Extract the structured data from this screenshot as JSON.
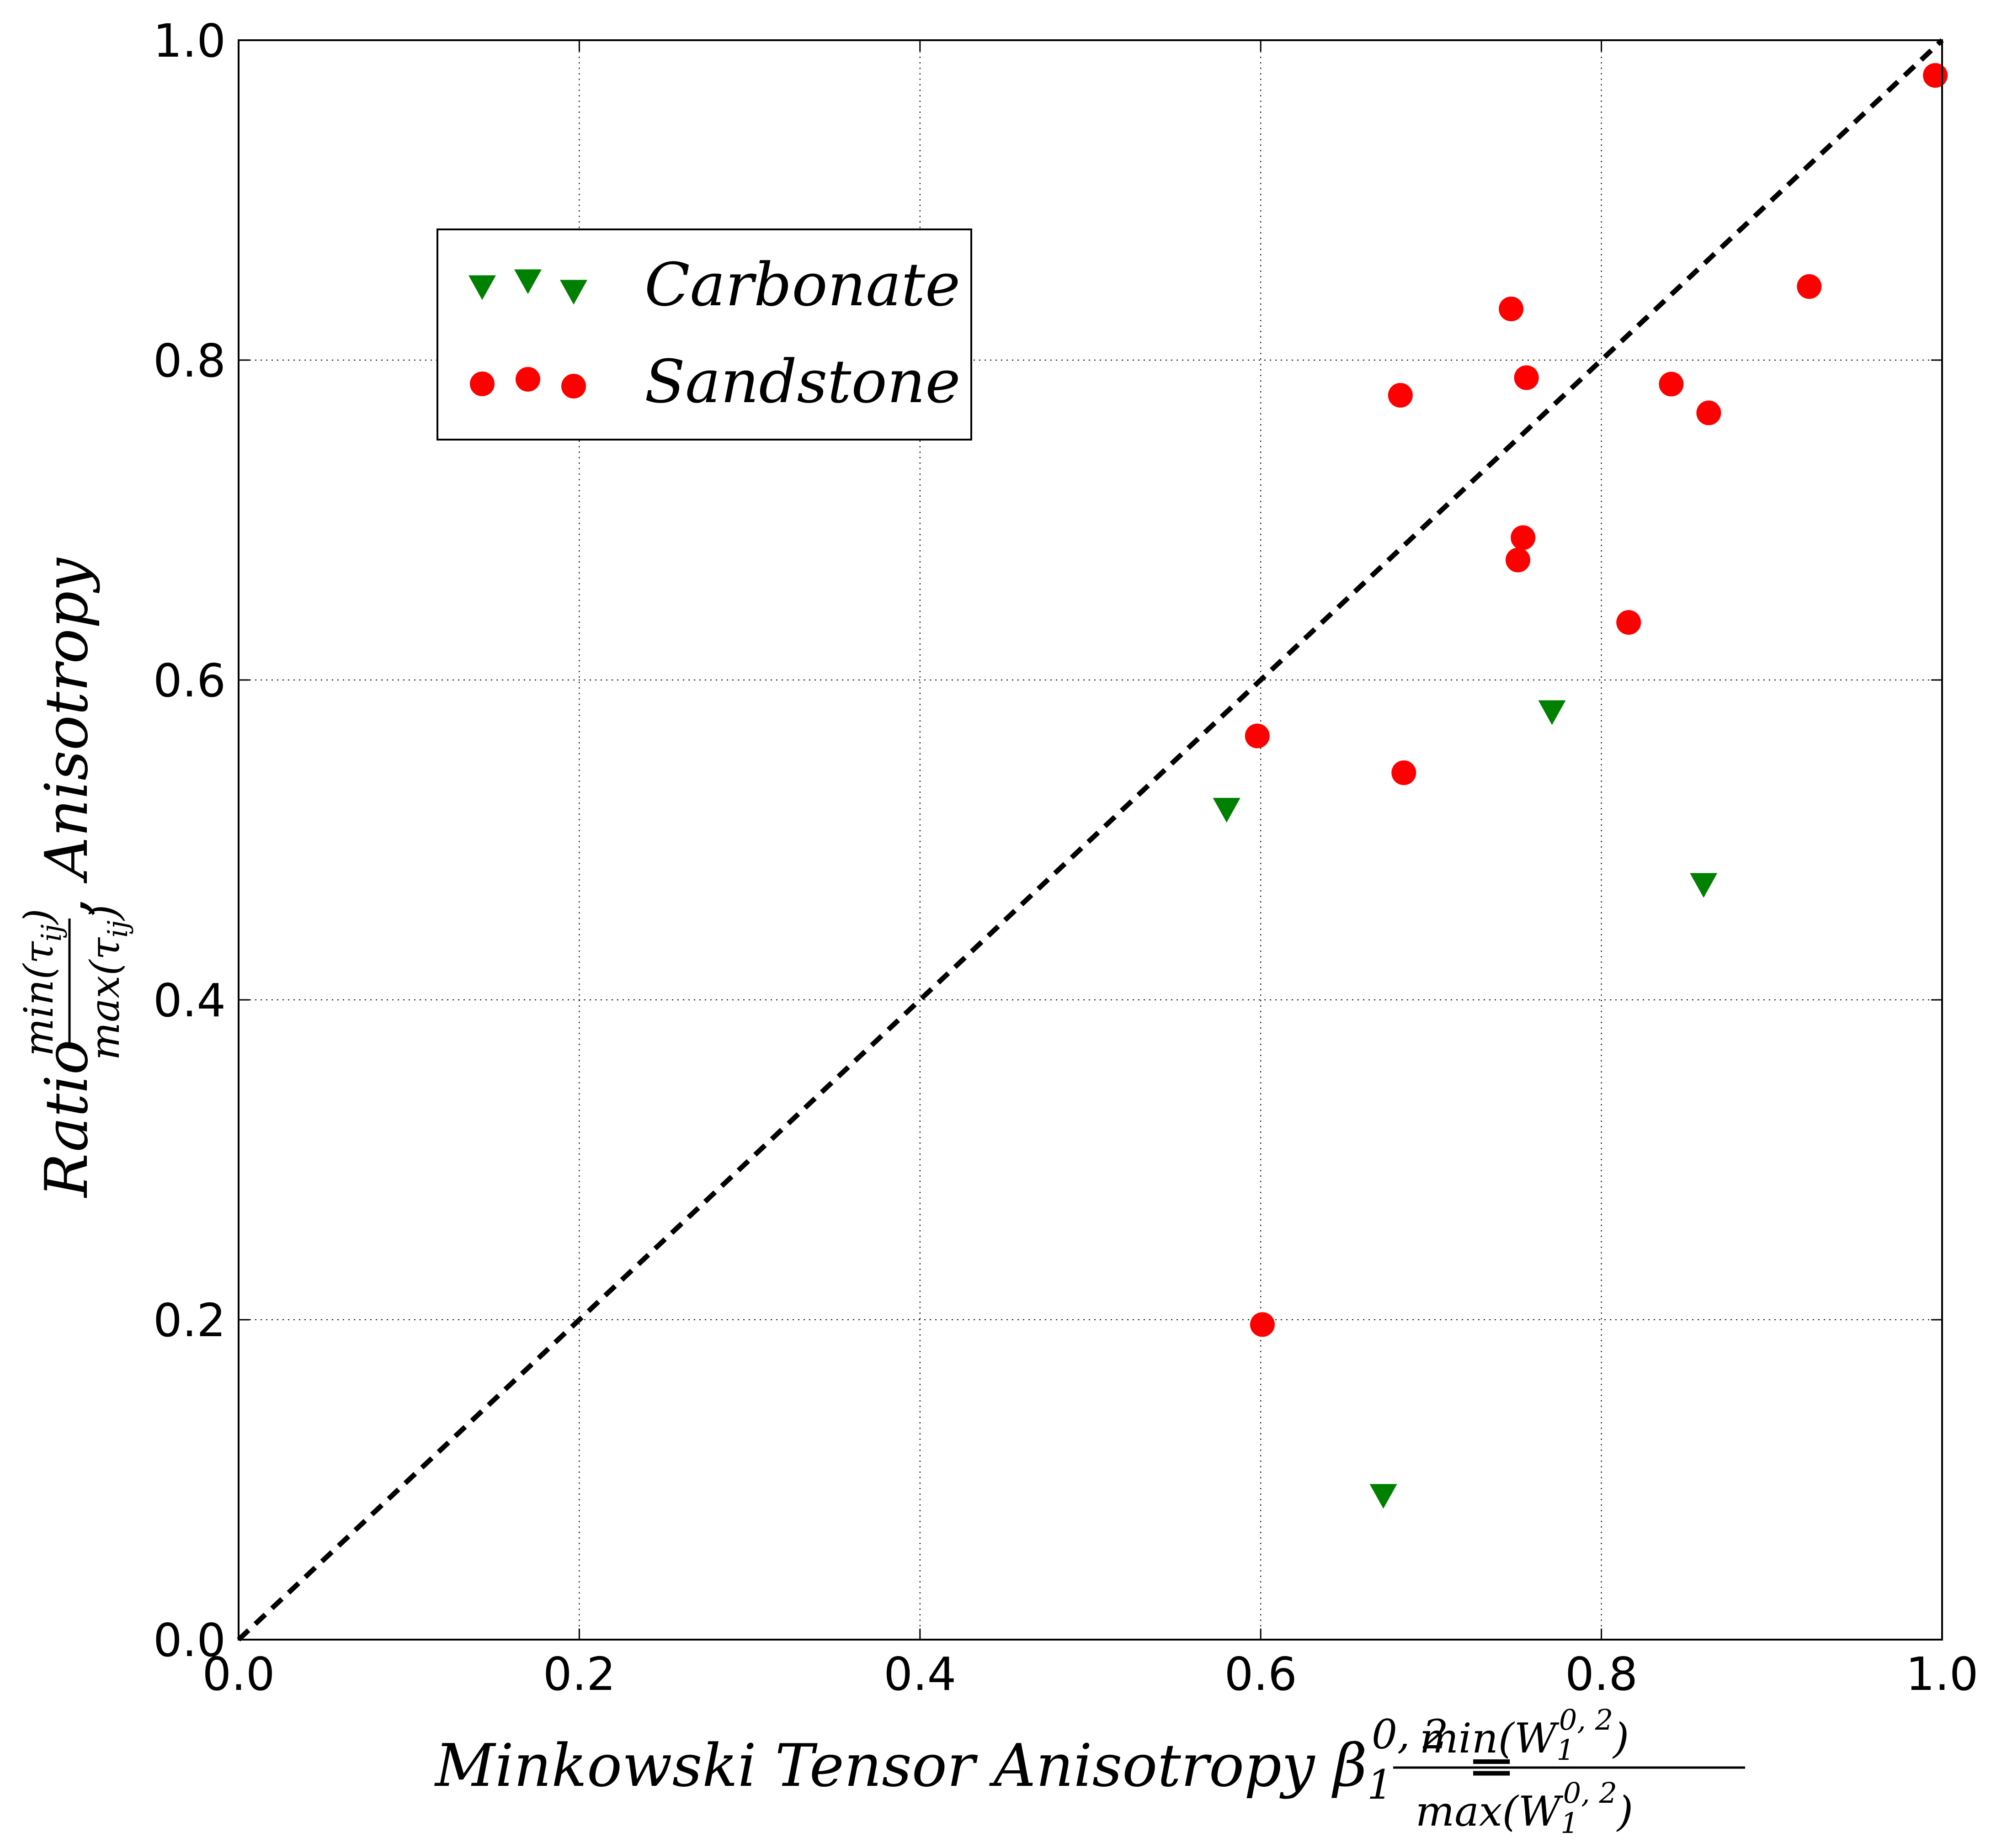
{
  "chart_data": {
    "type": "scatter",
    "xlabel": {
      "prefix": "Minkowski Tensor Anisotropy β",
      "sub": "1",
      "sup": "0, 2",
      "eq": " =",
      "num": "min(W",
      "num_sub": "1",
      "num_sup": "0, 2",
      "num_end": ")",
      "den": "max(W",
      "den_sub": "1",
      "den_sup": "0, 2",
      "den_end": ")"
    },
    "ylabel": {
      "prefix": "Ratio",
      "num": "min(τ",
      "num_sub": "ij",
      "num_end": ")",
      "den": "max(τ",
      "den_sub": "ij",
      "den_end": ")",
      "suffix": ",  Anisotropy"
    },
    "xlim": [
      0.0,
      1.0
    ],
    "ylim": [
      0.0,
      1.0
    ],
    "xticks": [
      "0.0",
      "0.2",
      "0.4",
      "0.6",
      "0.8",
      "1.0"
    ],
    "yticks": [
      "0.0",
      "0.2",
      "0.4",
      "0.6",
      "0.8",
      "1.0"
    ],
    "grid": true,
    "reference_line": {
      "from": [
        0,
        0
      ],
      "to": [
        1,
        1
      ],
      "style": "dashed",
      "color": "#000000"
    },
    "legend_position": "upper-left",
    "series": [
      {
        "name": "Carbonate",
        "marker": "triangle-down",
        "color": "#008000",
        "points": [
          {
            "x": 0.58,
            "y": 0.519
          },
          {
            "x": 0.672,
            "y": 0.09
          },
          {
            "x": 0.771,
            "y": 0.58
          },
          {
            "x": 0.86,
            "y": 0.472
          }
        ]
      },
      {
        "name": "Sandstone",
        "marker": "circle",
        "color": "#ff0000",
        "points": [
          {
            "x": 0.598,
            "y": 0.565
          },
          {
            "x": 0.601,
            "y": 0.197
          },
          {
            "x": 0.682,
            "y": 0.778
          },
          {
            "x": 0.684,
            "y": 0.542
          },
          {
            "x": 0.747,
            "y": 0.832
          },
          {
            "x": 0.751,
            "y": 0.675
          },
          {
            "x": 0.754,
            "y": 0.689
          },
          {
            "x": 0.756,
            "y": 0.789
          },
          {
            "x": 0.816,
            "y": 0.636
          },
          {
            "x": 0.841,
            "y": 0.785
          },
          {
            "x": 0.863,
            "y": 0.767
          },
          {
            "x": 0.922,
            "y": 0.846
          },
          {
            "x": 0.996,
            "y": 0.978
          }
        ]
      }
    ]
  }
}
